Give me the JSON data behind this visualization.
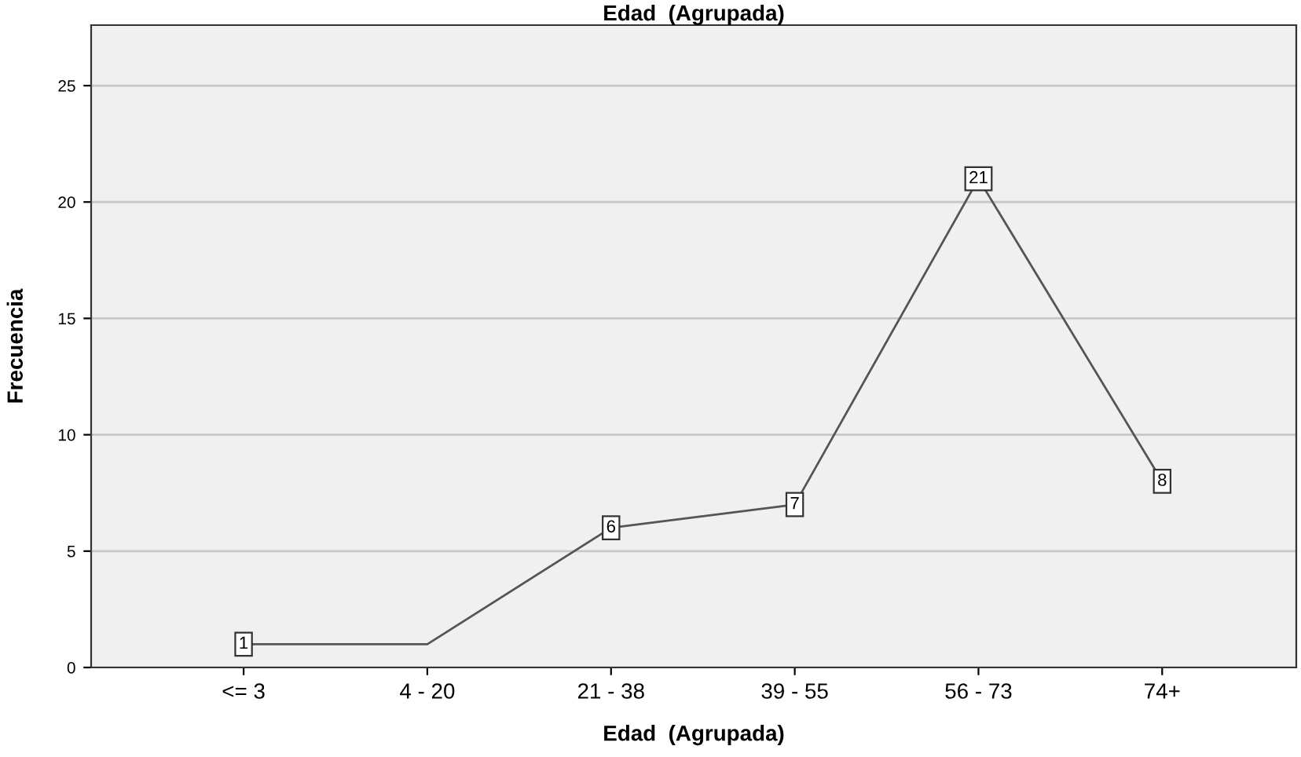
{
  "chart_data": {
    "type": "line",
    "title": "Edad  (Agrupada)",
    "xlabel": "Edad  (Agrupada)",
    "ylabel": "Frecuencia",
    "categories": [
      "<= 3",
      "4 - 20",
      "21 - 38",
      "39 - 55",
      "56 - 73",
      "74+"
    ],
    "series": [
      {
        "color": "#555555",
        "values": [
          1,
          1,
          6,
          7,
          21,
          8
        ],
        "value_labels": [
          "1",
          null,
          "6",
          "7",
          "21",
          "8"
        ]
      }
    ],
    "ylim": [
      0,
      27.6
    ],
    "yticks": [
      0,
      5,
      10,
      15,
      20,
      25
    ],
    "grid": "y",
    "marker": "square",
    "line_style": "solid"
  }
}
